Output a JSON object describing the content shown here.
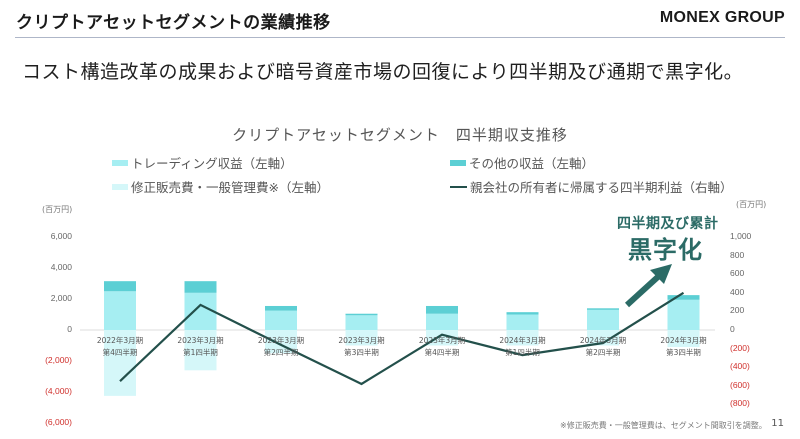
{
  "header": {
    "title": "クリプトアセットセグメントの業績推移",
    "brand": "MONEX GROUP"
  },
  "headline": "コスト構造改革の成果および暗号資産市場の回復により四半期及び通期で黒字化。",
  "callout": {
    "line1": "四半期及び累計",
    "line2": "黒字化"
  },
  "footnote": "※修正販売費・一般管理費は、セグメント間取引を調整。",
  "page_number": "11",
  "colors": {
    "trading": "#a6eef2",
    "other": "#5ccfd4",
    "expense": "#d5f7f9",
    "line": "#23504b",
    "negative_tick": "#d0312d",
    "callout": "#2b6b66"
  },
  "chart_data": {
    "type": "bar",
    "title": "クリプトアセットセグメント　四半期収支推移",
    "left_axis_unit": "(百万円)",
    "right_axis_unit": "(百万円)",
    "left_ticks": [
      "6,000",
      "4,000",
      "2,000",
      "0",
      "(2,000)",
      "(4,000)",
      "(6,000)"
    ],
    "right_ticks": [
      "1,000",
      "800",
      "600",
      "400",
      "200",
      "0",
      "(200)",
      "(400)",
      "(600)",
      "(800)"
    ],
    "ylim_left": [
      -6000,
      6000
    ],
    "ylim_right": [
      -800,
      1000
    ],
    "legend": [
      "トレーディング収益（左軸）",
      "その他の収益（左軸）",
      "修正販売費・一般管理費※（左軸）",
      "親会社の所有者に帰属する四半期利益（右軸）"
    ],
    "categories": [
      [
        "2022年3月期",
        "第4四半期"
      ],
      [
        "2023年3月期",
        "第1四半期"
      ],
      [
        "2023年3月期",
        "第2四半期"
      ],
      [
        "2023年3月期",
        "第3四半期"
      ],
      [
        "2023年3月期",
        "第4四半期"
      ],
      [
        "2024年3月期",
        "第1四半期"
      ],
      [
        "2024年3月期",
        "第2四半期"
      ],
      [
        "2024年3月期",
        "第3四半期"
      ]
    ],
    "series": [
      {
        "name": "トレーディング収益（左軸）",
        "axis": "left",
        "type": "bar",
        "values": [
          2500,
          2400,
          1250,
          950,
          1050,
          1000,
          1300,
          1950
        ]
      },
      {
        "name": "その他の収益（左軸）",
        "axis": "left",
        "type": "bar",
        "values": [
          650,
          750,
          300,
          100,
          500,
          150,
          100,
          300
        ]
      },
      {
        "name": "修正販売費・一般管理費※（左軸）",
        "axis": "left",
        "type": "bar",
        "values": [
          -4250,
          -2600,
          -1500,
          -1000,
          -1000,
          -1000,
          -1000,
          -1100
        ]
      },
      {
        "name": "親会社の所有者に帰属する四半期利益（右軸）",
        "axis": "right",
        "type": "line",
        "values": [
          -550,
          270,
          -160,
          -580,
          -50,
          -270,
          -140,
          400
        ]
      }
    ]
  }
}
